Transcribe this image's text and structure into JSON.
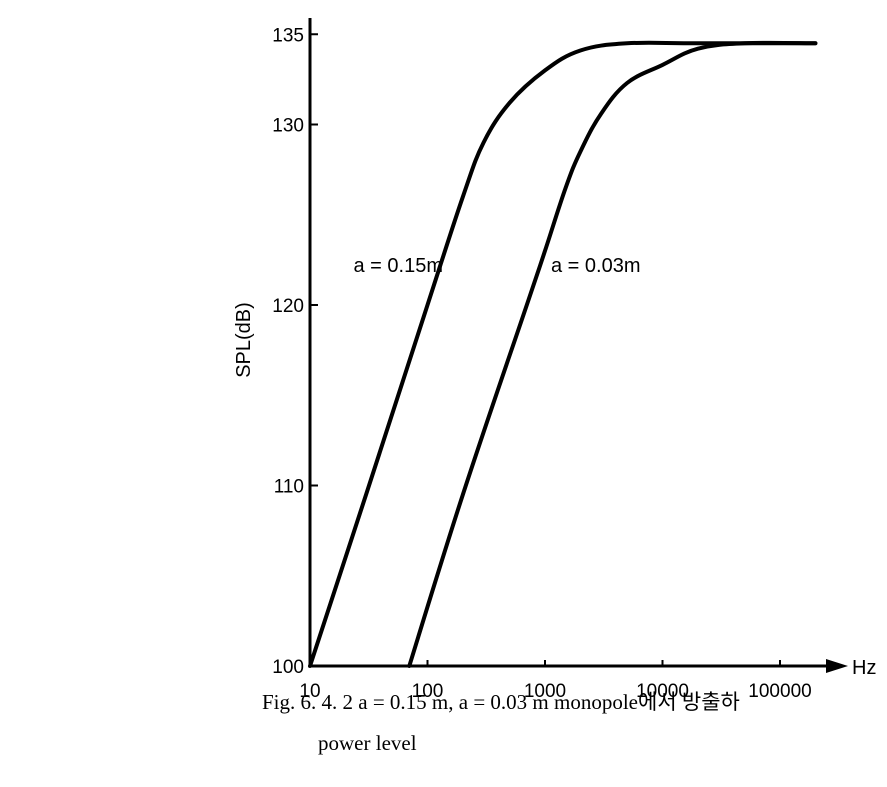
{
  "chart_data": {
    "type": "line",
    "xscale": "log",
    "xlim": [
      10,
      200000
    ],
    "ylim": [
      100,
      135
    ],
    "xlabel": "Hz",
    "ylabel": "SPL(dB)",
    "x_ticks": [
      "10",
      "100",
      "1000",
      "10000",
      "100000"
    ],
    "y_ticks": [
      "100",
      "110",
      "120",
      "130",
      "135"
    ],
    "grid": false,
    "series": [
      {
        "name": "a = 0.15m",
        "color": "#000000",
        "points": [
          [
            10,
            100
          ],
          [
            30,
            109.5
          ],
          [
            100,
            120
          ],
          [
            200,
            126
          ],
          [
            300,
            129
          ],
          [
            500,
            131.2
          ],
          [
            1000,
            133
          ],
          [
            2000,
            134.1
          ],
          [
            5000,
            134.5
          ],
          [
            20000,
            134.5
          ],
          [
            200000,
            134.5
          ]
        ]
      },
      {
        "name": "a = 0.03m",
        "color": "#000000",
        "points": [
          [
            70,
            100
          ],
          [
            200,
            109.5
          ],
          [
            700,
            120
          ],
          [
            1000,
            123
          ],
          [
            1500,
            126.5
          ],
          [
            2000,
            128.5
          ],
          [
            3000,
            130.6
          ],
          [
            5000,
            132.3
          ],
          [
            10000,
            133.3
          ],
          [
            20000,
            134.2
          ],
          [
            50000,
            134.5
          ],
          [
            200000,
            134.5
          ]
        ]
      }
    ]
  },
  "caption": {
    "line1": "Fig. 6. 4. 2   a = 0.15 m,  a = 0.03 m  monopole에서 방출하",
    "line2": "power level"
  }
}
